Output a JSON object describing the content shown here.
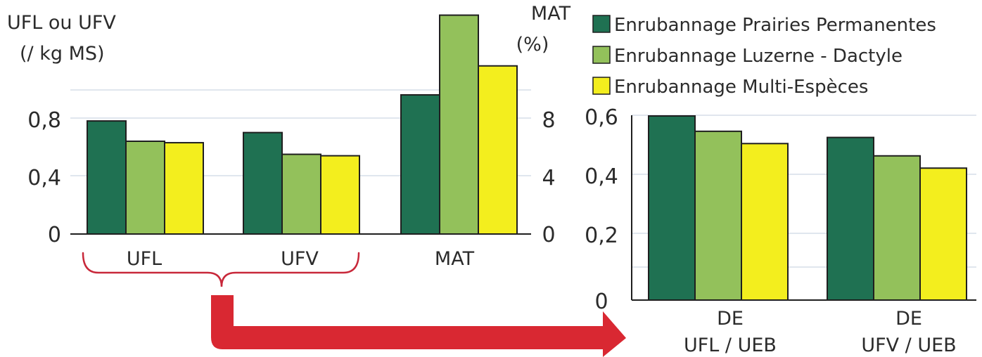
{
  "colors": {
    "series": [
      "#1f7152",
      "#93c15b",
      "#f3ee1e"
    ],
    "brace": "#c8283a",
    "arrow": "#d92832"
  },
  "legend": [
    "Enrubannage Prairies Permanentes",
    "Enrubannage Luzerne - Dactyle",
    "Enrubannage Multi-Espèces"
  ],
  "chart_data": [
    {
      "type": "bar",
      "panel": "left-ufl-ufv",
      "ylabel": [
        "UFL ou UFV",
        "(/ kg MS)"
      ],
      "categories": [
        "UFL",
        "UFV"
      ],
      "series": [
        {
          "name": "Enrubannage Prairies Permanentes",
          "values": [
            0.78,
            0.7
          ]
        },
        {
          "name": "Enrubannage Luzerne - Dactyle",
          "values": [
            0.64,
            0.55
          ]
        },
        {
          "name": "Enrubannage Multi-Espèces",
          "values": [
            0.63,
            0.54
          ]
        }
      ],
      "ylim": [
        0,
        1.6
      ],
      "yticks": [
        "0",
        "0,4",
        "0,8"
      ],
      "grid": true
    },
    {
      "type": "bar",
      "panel": "left-mat",
      "ylabel": [
        "MAT",
        "(%)"
      ],
      "categories": [
        "MAT"
      ],
      "series": [
        {
          "name": "Enrubannage Prairies Permanentes",
          "values": [
            9.6
          ]
        },
        {
          "name": "Enrubannage Luzerne - Dactyle",
          "values": [
            15.1
          ]
        },
        {
          "name": "Enrubannage Multi-Espèces",
          "values": [
            11.6
          ]
        }
      ],
      "ylim": [
        0,
        16
      ],
      "yticks": [
        "0",
        "4",
        "8"
      ]
    },
    {
      "type": "bar",
      "panel": "right-de",
      "categories": [
        [
          "DE",
          "UFL / UEB"
        ],
        [
          "DE",
          "UFV / UEB"
        ]
      ],
      "series": [
        {
          "name": "Enrubannage Prairies Permanentes",
          "values": [
            0.6,
            0.53
          ]
        },
        {
          "name": "Enrubannage Luzerne - Dactyle",
          "values": [
            0.55,
            0.47
          ]
        },
        {
          "name": "Enrubannage Multi-Espèces",
          "values": [
            0.51,
            0.43
          ]
        }
      ],
      "ylim": [
        0,
        0.6
      ],
      "yticks": [
        "0",
        "0,2",
        "0,4",
        "0,6"
      ],
      "grid": true,
      "legend_position": "top"
    }
  ]
}
